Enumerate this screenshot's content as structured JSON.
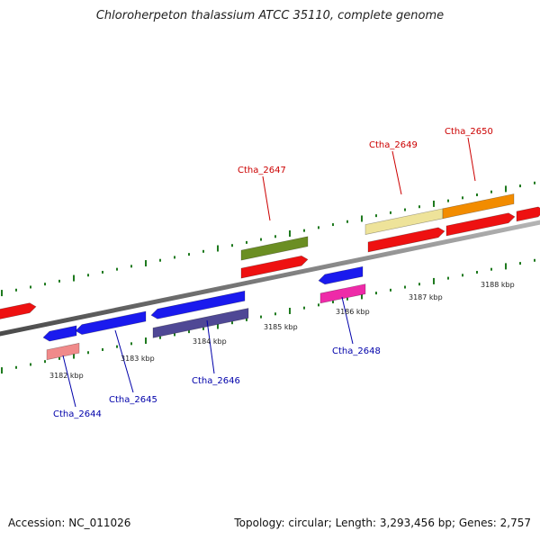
{
  "title": "Chloroherpeton thalassium ATCC 35110, complete genome",
  "footer": {
    "accession": "Accession: NC_011026",
    "genome_info": "Topology: circular; Length: 3,293,456 bp; Genes: 2,757"
  },
  "ticks": {
    "upper_labels": [
      "3185 kbp",
      "3187 kbp",
      "3188 kbp"
    ],
    "lower_labels": [
      "3182 kbp",
      "3183 kbp",
      "3184 kbp",
      "3186 kbp"
    ]
  },
  "genes": {
    "forward": [
      "Ctha_2647",
      "Ctha_2649",
      "Ctha_2650"
    ],
    "reverse": [
      "Ctha_2644",
      "Ctha_2645",
      "Ctha_2646",
      "Ctha_2648"
    ]
  },
  "colors": {
    "forward_label": "#cc0000",
    "reverse_label": "#0000aa",
    "backbone": "#8a8a8a",
    "tick": "#1f7a1f"
  }
}
